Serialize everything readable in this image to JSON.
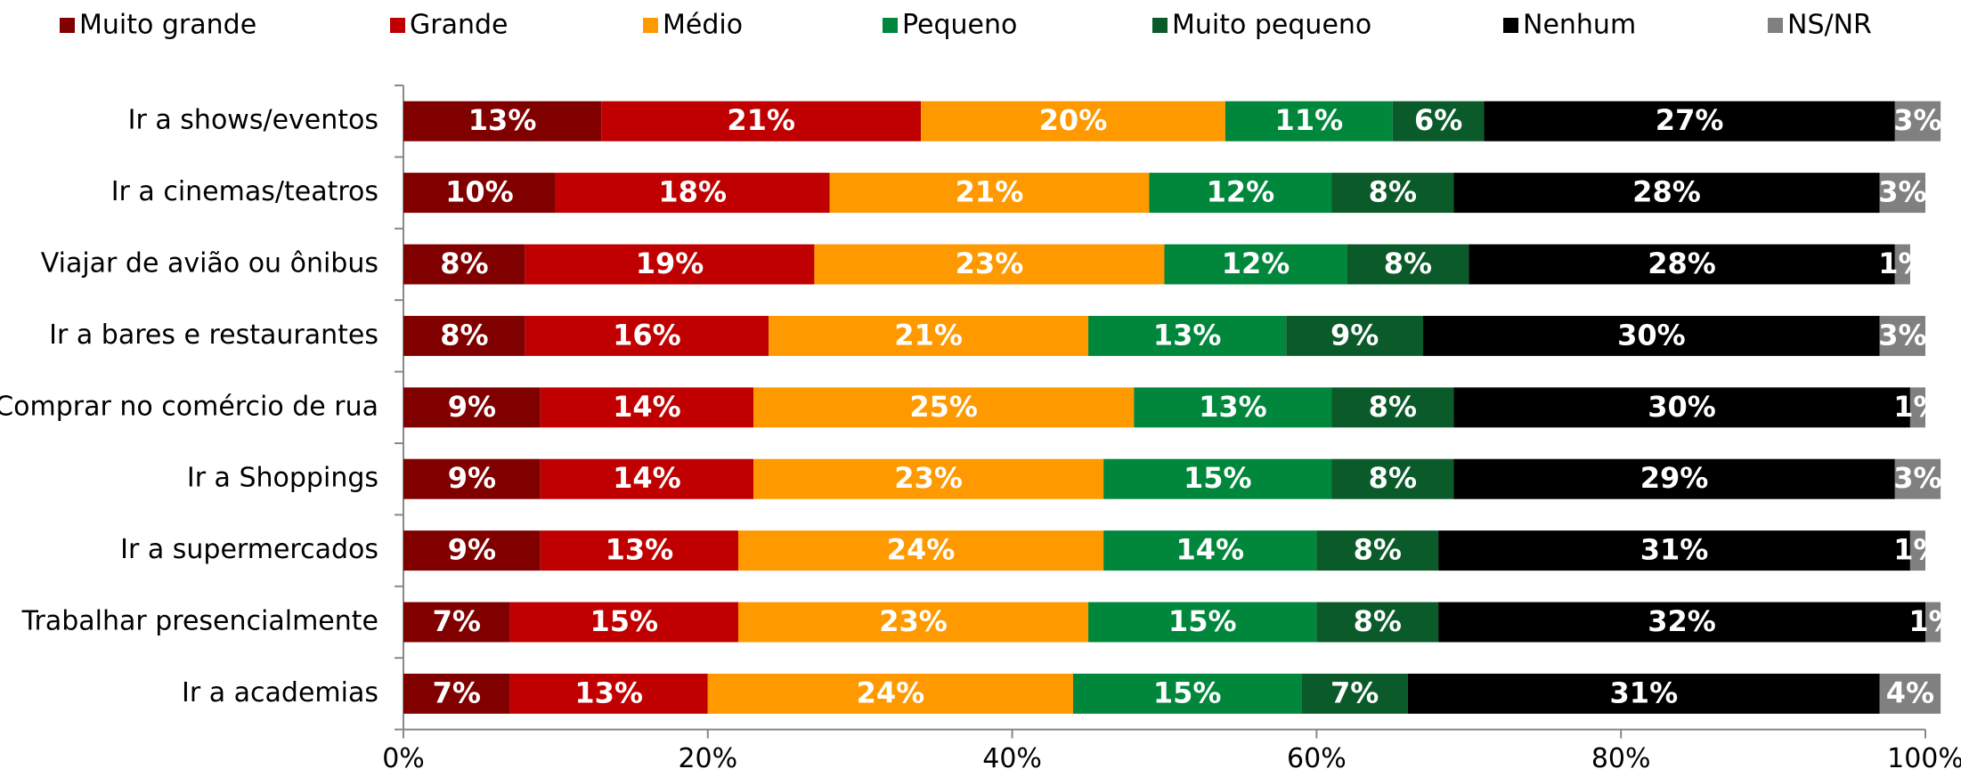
{
  "chart_data": {
    "type": "stacked-barh",
    "categories": [
      "Ir a shows/eventos",
      "Ir a cinemas/teatros",
      "Viajar de avião ou ônibus",
      "Ir a bares e restaurantes",
      "Comprar no comércio de rua",
      "Ir a Shoppings",
      "Ir a supermercados",
      "Trabalhar presencialmente",
      "Ir a academias"
    ],
    "series": [
      {
        "name": "Muito grande",
        "color": "#800000",
        "values": [
          13,
          10,
          8,
          8,
          9,
          9,
          9,
          7,
          7
        ],
        "value_labels": [
          "13%",
          "10%",
          "8%",
          "8%",
          "9%",
          "9%",
          "9%",
          "7%",
          "7%"
        ]
      },
      {
        "name": "Grande",
        "color": "#c00000",
        "values": [
          21,
          18,
          19,
          16,
          14,
          14,
          13,
          15,
          13
        ],
        "value_labels": [
          "21%",
          "18%",
          "19%",
          "16%",
          "14%",
          "14%",
          "13%",
          "15%",
          "13%"
        ]
      },
      {
        "name": "Médio",
        "color": "#ff9900",
        "values": [
          20,
          21,
          23,
          21,
          25,
          23,
          24,
          23,
          24
        ],
        "value_labels": [
          "20%",
          "21%",
          "23%",
          "21%",
          "25%",
          "23%",
          "24%",
          "23%",
          "24%"
        ]
      },
      {
        "name": "Pequeno",
        "color": "#00873c",
        "values": [
          11,
          12,
          12,
          13,
          13,
          15,
          14,
          15,
          15
        ],
        "value_labels": [
          "11%",
          "12%",
          "12%",
          "13%",
          "13%",
          "15%",
          "14%",
          "15%",
          "15%"
        ]
      },
      {
        "name": "Muito pequeno",
        "color": "#0b5a2a",
        "values": [
          6,
          8,
          8,
          9,
          8,
          8,
          8,
          8,
          7
        ],
        "value_labels": [
          "6%",
          "8%",
          "8%",
          "9%",
          "8%",
          "8%",
          "8%",
          "8%",
          "7%"
        ]
      },
      {
        "name": "Nenhum",
        "color": "#000000",
        "values": [
          27,
          28,
          28,
          30,
          30,
          29,
          31,
          32,
          31
        ],
        "value_labels": [
          "27%",
          "28%",
          "28%",
          "30%",
          "30%",
          "29%",
          "31%",
          "32%",
          "31%"
        ]
      },
      {
        "name": "NS/NR",
        "color": "#808080",
        "values": [
          3,
          3,
          1,
          3,
          1,
          3,
          1,
          1,
          4
        ],
        "value_labels": [
          "3%",
          "3%",
          "1%",
          "3%",
          "1%",
          "3%",
          "1%",
          "1%",
          "4%"
        ]
      }
    ],
    "xlim": [
      0,
      100
    ],
    "xticks": [
      {
        "value": 0,
        "label": "0%"
      },
      {
        "value": 20,
        "label": "20%"
      },
      {
        "value": 40,
        "label": "40%"
      },
      {
        "value": 60,
        "label": "60%"
      },
      {
        "value": 80,
        "label": "80%"
      },
      {
        "value": 100,
        "label": "100%"
      }
    ],
    "legend": "top"
  }
}
